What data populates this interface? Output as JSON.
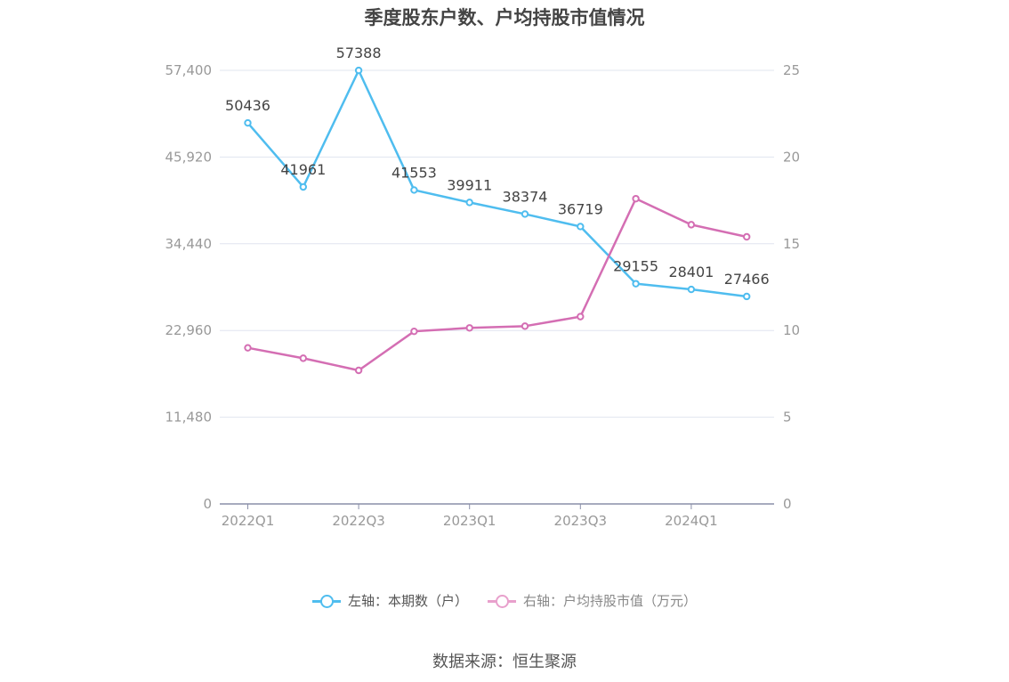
{
  "title": "季度股东户数、户均持股市值情况",
  "source": "数据来源：恒生聚源",
  "legend": {
    "left": "左轴：本期数（户）",
    "right": "右轴：户均持股市值（万元）"
  },
  "colors": {
    "left_series": "#4fbdef",
    "right_series": "#d46eb3",
    "right_legend": "#e8a0cc",
    "grid": "#e0e4ef",
    "axis_text": "#999999"
  },
  "chart_data": {
    "type": "line",
    "title": "季度股东户数、户均持股市值情况",
    "categories": [
      "2022Q1",
      "2022Q2",
      "2022Q3",
      "2022Q4",
      "2023Q1",
      "2023Q2",
      "2023Q3",
      "2023Q4",
      "2024Q1",
      "2024Q2"
    ],
    "x_tick_labels": [
      "2022Q1",
      "2022Q3",
      "2023Q1",
      "2023Q3",
      "2024Q1"
    ],
    "left_axis": {
      "ticks": [
        "0",
        "11,480",
        "22,960",
        "34,440",
        "45,920",
        "57,400"
      ],
      "range": [
        0,
        57400
      ]
    },
    "right_axis": {
      "ticks": [
        "0",
        "5",
        "10",
        "15",
        "20",
        "25"
      ],
      "range": [
        0,
        25
      ]
    },
    "series": [
      {
        "name": "左轴：本期数（户）",
        "axis": "left",
        "values": [
          50436,
          41961,
          57388,
          41553,
          39911,
          38374,
          36719,
          29155,
          28401,
          27466
        ],
        "labels": [
          "50436",
          "41961",
          "57388",
          "41553",
          "39911",
          "38374",
          "36719",
          "29155",
          "28401",
          "27466"
        ]
      },
      {
        "name": "右轴：户均持股市值（万元）",
        "axis": "right",
        "values": [
          9.0,
          8.4,
          7.7,
          9.95,
          10.15,
          10.25,
          10.8,
          17.6,
          16.1,
          15.4
        ]
      }
    ],
    "grid": true,
    "legend_position": "bottom"
  }
}
